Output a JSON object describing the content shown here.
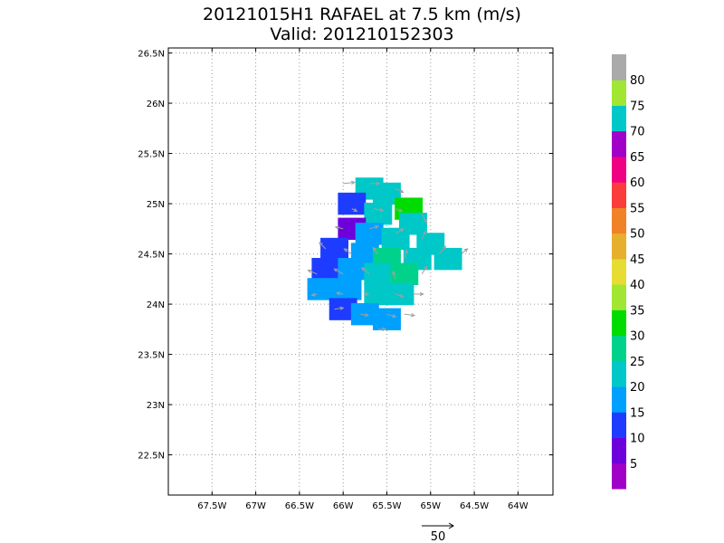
{
  "chart_data": {
    "type": "heatmap",
    "title": "20121015H1 RAFAEL at 7.5 km (m/s)",
    "subtitle": "Valid: 201210152303",
    "xlim": [
      -68.0,
      -63.6
    ],
    "ylim": [
      22.1,
      26.55
    ],
    "x_ticks": [
      {
        "value": -67.5,
        "label": "67.5W"
      },
      {
        "value": -67.0,
        "label": "67W"
      },
      {
        "value": -66.5,
        "label": "66.5W"
      },
      {
        "value": -66.0,
        "label": "66W"
      },
      {
        "value": -65.5,
        "label": "65.5W"
      },
      {
        "value": -65.0,
        "label": "65W"
      },
      {
        "value": -64.5,
        "label": "64.5W"
      },
      {
        "value": -64.0,
        "label": "64W"
      }
    ],
    "y_ticks": [
      {
        "value": 22.5,
        "label": "22.5N"
      },
      {
        "value": 23.0,
        "label": "23N"
      },
      {
        "value": 23.5,
        "label": "23.5N"
      },
      {
        "value": 24.0,
        "label": "24N"
      },
      {
        "value": 24.5,
        "label": "24.5N"
      },
      {
        "value": 25.0,
        "label": "25N"
      },
      {
        "value": 25.5,
        "label": "25.5N"
      },
      {
        "value": 26.0,
        "label": "26N"
      },
      {
        "value": 26.5,
        "label": "26.5N"
      }
    ],
    "grid": true,
    "colorbar": {
      "levels": [
        {
          "label": "5",
          "color": "#a000c8"
        },
        {
          "label": "10",
          "color": "#6e00dc"
        },
        {
          "label": "15",
          "color": "#1e3cff"
        },
        {
          "label": "20",
          "color": "#00a0ff"
        },
        {
          "label": "25",
          "color": "#00c8c8"
        },
        {
          "label": "30",
          "color": "#00d28c"
        },
        {
          "label": "35",
          "color": "#00dc00"
        },
        {
          "label": "40",
          "color": "#a0e632"
        },
        {
          "label": "45",
          "color": "#e6dc32"
        },
        {
          "label": "50",
          "color": "#e6af2d"
        },
        {
          "label": "55",
          "color": "#f08228"
        },
        {
          "label": "60",
          "color": "#fa3c3c"
        },
        {
          "label": "65",
          "color": "#f00082"
        },
        {
          "label": "70",
          "color": "#a000c8"
        },
        {
          "label": "75",
          "color": "#00c8c8"
        },
        {
          "label": "80",
          "color": "#a0e632"
        },
        {
          "label": "",
          "color": "#aaaaaa"
        }
      ]
    },
    "cells": [
      {
        "lon": -65.7,
        "lat": 25.15,
        "speed": 25
      },
      {
        "lon": -65.5,
        "lat": 25.1,
        "speed": 25
      },
      {
        "lon": -65.9,
        "lat": 25.0,
        "speed": 15
      },
      {
        "lon": -65.25,
        "lat": 24.95,
        "speed": 35
      },
      {
        "lon": -65.6,
        "lat": 24.9,
        "speed": 25
      },
      {
        "lon": -65.2,
        "lat": 24.8,
        "speed": 25
      },
      {
        "lon": -65.9,
        "lat": 24.75,
        "speed": 10
      },
      {
        "lon": -65.7,
        "lat": 24.7,
        "speed": 20
      },
      {
        "lon": -65.4,
        "lat": 24.65,
        "speed": 25
      },
      {
        "lon": -65.0,
        "lat": 24.6,
        "speed": 25
      },
      {
        "lon": -66.1,
        "lat": 24.55,
        "speed": 15
      },
      {
        "lon": -65.75,
        "lat": 24.5,
        "speed": 20
      },
      {
        "lon": -65.5,
        "lat": 24.45,
        "speed": 30
      },
      {
        "lon": -65.15,
        "lat": 24.45,
        "speed": 25
      },
      {
        "lon": -64.8,
        "lat": 24.45,
        "speed": 25
      },
      {
        "lon": -66.2,
        "lat": 24.35,
        "speed": 15
      },
      {
        "lon": -65.9,
        "lat": 24.35,
        "speed": 20
      },
      {
        "lon": -65.6,
        "lat": 24.3,
        "speed": 25
      },
      {
        "lon": -65.3,
        "lat": 24.3,
        "speed": 30
      },
      {
        "lon": -66.25,
        "lat": 24.15,
        "speed": 20
      },
      {
        "lon": -65.95,
        "lat": 24.15,
        "speed": 20
      },
      {
        "lon": -65.6,
        "lat": 24.1,
        "speed": 25
      },
      {
        "lon": -65.35,
        "lat": 24.1,
        "speed": 25
      },
      {
        "lon": -66.0,
        "lat": 23.95,
        "speed": 15
      },
      {
        "lon": -65.75,
        "lat": 23.9,
        "speed": 20
      },
      {
        "lon": -65.5,
        "lat": 23.85,
        "speed": 20
      }
    ],
    "wind_vectors": [
      {
        "lon": -66.0,
        "lat": 25.2,
        "u": 18,
        "v": 2
      },
      {
        "lon": -65.7,
        "lat": 25.2,
        "u": 16,
        "v": 0
      },
      {
        "lon": -65.4,
        "lat": 25.15,
        "u": 12,
        "v": -6
      },
      {
        "lon": -65.9,
        "lat": 24.95,
        "u": 8,
        "v": -4
      },
      {
        "lon": -65.65,
        "lat": 24.95,
        "u": 15,
        "v": -3
      },
      {
        "lon": -65.4,
        "lat": 24.95,
        "u": 10,
        "v": -4
      },
      {
        "lon": -65.1,
        "lat": 24.9,
        "u": 8,
        "v": -14
      },
      {
        "lon": -66.0,
        "lat": 24.75,
        "u": -12,
        "v": 3
      },
      {
        "lon": -65.7,
        "lat": 24.75,
        "u": 14,
        "v": 4
      },
      {
        "lon": -65.4,
        "lat": 24.7,
        "u": 12,
        "v": 8
      },
      {
        "lon": -65.1,
        "lat": 24.65,
        "u": 6,
        "v": 12
      },
      {
        "lon": -64.9,
        "lat": 24.5,
        "u": 10,
        "v": 12
      },
      {
        "lon": -64.65,
        "lat": 24.5,
        "u": 10,
        "v": 8
      },
      {
        "lon": -66.2,
        "lat": 24.55,
        "u": -10,
        "v": 10
      },
      {
        "lon": -65.9,
        "lat": 24.5,
        "u": -12,
        "v": 8
      },
      {
        "lon": -65.6,
        "lat": 24.5,
        "u": -8,
        "v": 10
      },
      {
        "lon": -65.3,
        "lat": 24.45,
        "u": 4,
        "v": 14
      },
      {
        "lon": -66.3,
        "lat": 24.3,
        "u": -14,
        "v": 6
      },
      {
        "lon": -66.0,
        "lat": 24.3,
        "u": -14,
        "v": 8
      },
      {
        "lon": -65.7,
        "lat": 24.3,
        "u": -12,
        "v": 10
      },
      {
        "lon": -65.4,
        "lat": 24.25,
        "u": -4,
        "v": 12
      },
      {
        "lon": -65.1,
        "lat": 24.3,
        "u": 8,
        "v": 12
      },
      {
        "lon": -66.3,
        "lat": 24.1,
        "u": -8,
        "v": -2
      },
      {
        "lon": -66.0,
        "lat": 24.1,
        "u": -10,
        "v": 2
      },
      {
        "lon": -65.7,
        "lat": 24.1,
        "u": -8,
        "v": 0
      },
      {
        "lon": -65.4,
        "lat": 24.1,
        "u": 12,
        "v": -4
      },
      {
        "lon": -65.2,
        "lat": 24.1,
        "u": 16,
        "v": 0
      },
      {
        "lon": -66.1,
        "lat": 23.95,
        "u": 14,
        "v": 2
      },
      {
        "lon": -65.8,
        "lat": 23.9,
        "u": 12,
        "v": -2
      },
      {
        "lon": -65.5,
        "lat": 23.9,
        "u": 14,
        "v": -4
      },
      {
        "lon": -65.3,
        "lat": 23.9,
        "u": 16,
        "v": -2
      },
      {
        "lon": -65.6,
        "lat": 23.75,
        "u": 12,
        "v": 0
      }
    ],
    "reference_vector": {
      "label": "50",
      "magnitude": 50
    }
  }
}
